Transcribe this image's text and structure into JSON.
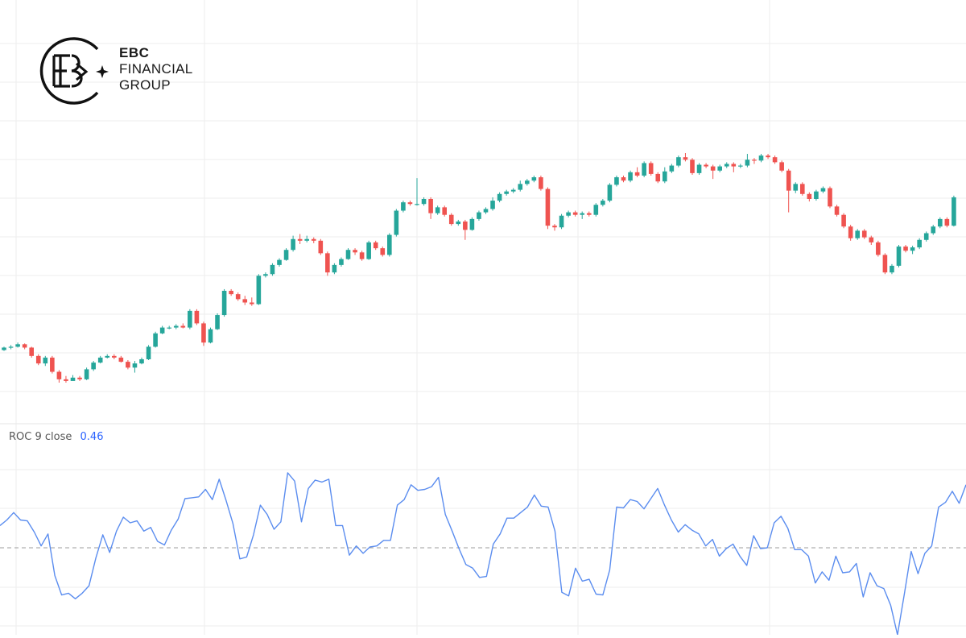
{
  "brand": {
    "name_line1": "EBC",
    "name_line2": "FINANCIAL",
    "name_line3": "GROUP"
  },
  "indicator": {
    "name": "ROC",
    "length": "9",
    "source": "close",
    "value": "0.46"
  },
  "colors": {
    "up": "#26a69a",
    "down": "#ef5350",
    "roc_line": "#5b8def",
    "zero_line": "#9e9e9e",
    "grid": "#eeeeee",
    "legend_value": "#2962ff"
  },
  "chart_data": [
    {
      "type": "candlestick",
      "title": "",
      "candles": [
        [
          -0.9,
          -0.6,
          -0.5,
          -1.0
        ],
        [
          -0.6,
          -0.5,
          -0.3,
          -0.8
        ],
        [
          -0.5,
          -0.2,
          0.0,
          -0.6
        ],
        [
          -0.2,
          -0.6,
          -0.1,
          -0.8
        ],
        [
          -0.6,
          -1.6,
          -0.5,
          -1.8
        ],
        [
          -1.6,
          -2.5,
          -1.4,
          -2.7
        ],
        [
          -2.5,
          -1.8,
          -1.6,
          -2.8
        ],
        [
          -1.8,
          -3.5,
          -1.6,
          -3.7
        ],
        [
          -3.5,
          -4.4,
          -3.3,
          -4.8
        ],
        [
          -4.4,
          -4.6,
          -4.0,
          -4.8
        ],
        [
          -4.6,
          -4.2,
          -3.9,
          -4.4
        ],
        [
          -4.2,
          -4.4,
          -4.0,
          -4.6
        ],
        [
          -4.4,
          -3.2,
          -3.0,
          -4.5
        ],
        [
          -3.2,
          -2.4,
          -2.2,
          -3.4
        ],
        [
          -2.4,
          -1.8,
          -1.6,
          -2.5
        ],
        [
          -1.8,
          -1.6,
          -1.4,
          -1.9
        ],
        [
          -1.6,
          -1.8,
          -1.4,
          -2.0
        ],
        [
          -1.8,
          -2.3,
          -1.6,
          -2.4
        ],
        [
          -2.3,
          -3.0,
          -2.1,
          -3.2
        ],
        [
          -3.0,
          -2.5,
          -2.2,
          -3.6
        ],
        [
          -2.5,
          -2.0,
          -1.8,
          -2.6
        ],
        [
          -2.0,
          -0.5,
          -0.3,
          -2.1
        ],
        [
          -0.5,
          1.1,
          1.3,
          -0.6
        ],
        [
          1.1,
          1.8,
          2.0,
          1.0
        ],
        [
          1.8,
          1.8,
          2.0,
          1.6
        ],
        [
          1.8,
          2.0,
          2.2,
          1.6
        ],
        [
          2.0,
          1.8,
          2.3,
          1.7
        ],
        [
          1.8,
          3.8,
          4.0,
          1.6
        ],
        [
          3.8,
          2.3,
          4.0,
          2.1
        ],
        [
          2.3,
          0.0,
          2.5,
          -0.4
        ],
        [
          0.0,
          1.6,
          1.8,
          -0.1
        ],
        [
          1.6,
          3.3,
          3.5,
          1.5
        ],
        [
          3.3,
          6.2,
          6.4,
          3.1
        ],
        [
          6.2,
          5.8,
          6.4,
          5.6
        ],
        [
          5.8,
          5.2,
          6.0,
          5.0
        ],
        [
          5.2,
          4.8,
          5.6,
          4.5
        ],
        [
          4.8,
          4.6,
          5.4,
          4.4
        ],
        [
          4.6,
          8.0,
          8.2,
          4.5
        ],
        [
          8.0,
          8.2,
          8.4,
          7.8
        ],
        [
          8.2,
          9.3,
          9.5,
          8.0
        ],
        [
          9.3,
          9.9,
          10.1,
          9.1
        ],
        [
          9.9,
          11.1,
          11.3,
          9.8
        ],
        [
          11.1,
          12.4,
          12.8,
          10.9
        ],
        [
          12.4,
          12.2,
          13.0,
          11.8
        ],
        [
          12.2,
          12.4,
          12.8,
          12.0
        ],
        [
          12.4,
          12.2,
          12.6,
          11.9
        ],
        [
          12.2,
          10.7,
          12.4,
          10.5
        ],
        [
          10.7,
          8.4,
          10.9,
          8.0
        ],
        [
          8.4,
          9.3,
          9.5,
          8.2
        ],
        [
          9.3,
          10.0,
          10.2,
          9.1
        ],
        [
          10.0,
          11.1,
          11.3,
          9.9
        ],
        [
          11.1,
          10.8,
          11.3,
          10.5
        ],
        [
          10.8,
          10.0,
          11.0,
          9.8
        ],
        [
          10.0,
          12.0,
          12.2,
          9.9
        ],
        [
          12.0,
          11.3,
          12.2,
          11.1
        ],
        [
          11.3,
          10.5,
          11.5,
          10.3
        ],
        [
          10.5,
          12.9,
          13.1,
          10.3
        ],
        [
          12.9,
          15.8,
          16.0,
          12.7
        ],
        [
          15.8,
          16.8,
          17.0,
          15.6
        ],
        [
          16.8,
          16.6,
          17.0,
          16.4
        ],
        [
          16.6,
          16.6,
          19.7,
          16.4
        ],
        [
          16.6,
          17.2,
          17.4,
          16.4
        ],
        [
          17.2,
          15.5,
          17.4,
          14.8
        ],
        [
          15.5,
          16.2,
          16.4,
          15.3
        ],
        [
          16.2,
          15.3,
          16.4,
          15.1
        ],
        [
          15.3,
          14.2,
          15.5,
          14.0
        ],
        [
          14.2,
          14.5,
          14.7,
          14.0
        ],
        [
          14.5,
          13.5,
          14.7,
          12.3
        ],
        [
          13.5,
          14.8,
          15.0,
          13.4
        ],
        [
          14.8,
          15.6,
          15.8,
          14.6
        ],
        [
          15.6,
          16.0,
          16.2,
          15.4
        ],
        [
          16.0,
          17.0,
          17.4,
          15.8
        ],
        [
          17.0,
          17.8,
          18.0,
          16.8
        ],
        [
          17.8,
          18.1,
          18.3,
          17.6
        ],
        [
          18.1,
          18.3,
          18.5,
          17.9
        ],
        [
          18.3,
          19.0,
          19.4,
          18.1
        ],
        [
          19.0,
          19.4,
          19.6,
          18.8
        ],
        [
          19.4,
          19.8,
          20.0,
          19.2
        ],
        [
          19.8,
          18.4,
          20.0,
          18.2
        ],
        [
          18.4,
          14.0,
          18.6,
          13.6
        ],
        [
          14.0,
          13.8,
          14.2,
          13.4
        ],
        [
          13.8,
          15.2,
          15.4,
          13.6
        ],
        [
          15.2,
          15.6,
          15.8,
          15.0
        ],
        [
          15.6,
          15.3,
          15.8,
          15.1
        ],
        [
          15.3,
          15.5,
          15.7,
          14.8
        ],
        [
          15.5,
          15.3,
          15.7,
          15.1
        ],
        [
          15.3,
          16.5,
          16.7,
          15.1
        ],
        [
          16.5,
          17.0,
          17.2,
          16.3
        ],
        [
          17.0,
          18.9,
          19.1,
          16.8
        ],
        [
          18.9,
          19.8,
          20.0,
          18.7
        ],
        [
          19.8,
          19.4,
          20.0,
          19.2
        ],
        [
          19.4,
          20.4,
          20.6,
          19.2
        ],
        [
          20.4,
          20.0,
          21.0,
          19.8
        ],
        [
          20.0,
          21.5,
          21.7,
          19.8
        ],
        [
          21.5,
          20.2,
          21.7,
          20.0
        ],
        [
          20.2,
          19.3,
          20.4,
          19.1
        ],
        [
          19.3,
          20.5,
          21.0,
          19.1
        ],
        [
          20.5,
          21.2,
          21.4,
          20.3
        ],
        [
          21.2,
          22.2,
          22.4,
          21.0
        ],
        [
          22.2,
          21.9,
          22.7,
          21.7
        ],
        [
          21.9,
          20.3,
          22.1,
          20.1
        ],
        [
          20.3,
          21.3,
          21.5,
          20.1
        ],
        [
          21.3,
          21.1,
          21.5,
          20.9
        ],
        [
          21.1,
          20.6,
          21.3,
          19.6
        ],
        [
          20.6,
          21.1,
          21.3,
          20.4
        ],
        [
          21.1,
          21.4,
          21.6,
          20.9
        ],
        [
          21.4,
          21.1,
          21.6,
          20.4
        ],
        [
          21.1,
          21.2,
          21.4,
          20.9
        ],
        [
          21.2,
          21.9,
          22.6,
          21.0
        ],
        [
          21.9,
          21.8,
          22.1,
          21.4
        ],
        [
          21.8,
          22.4,
          22.6,
          21.6
        ],
        [
          22.4,
          22.2,
          22.6,
          22.0
        ],
        [
          22.2,
          21.6,
          22.4,
          21.4
        ],
        [
          21.6,
          20.6,
          21.8,
          20.4
        ],
        [
          20.6,
          18.2,
          20.8,
          15.6
        ],
        [
          18.2,
          19.0,
          19.2,
          17.9
        ],
        [
          19.0,
          17.8,
          19.2,
          17.6
        ],
        [
          17.8,
          17.2,
          18.0,
          16.9
        ],
        [
          17.2,
          18.1,
          18.3,
          17.0
        ],
        [
          18.1,
          18.5,
          18.7,
          17.9
        ],
        [
          18.5,
          16.3,
          18.7,
          16.1
        ],
        [
          16.3,
          15.3,
          16.5,
          15.1
        ],
        [
          15.3,
          13.9,
          15.5,
          13.7
        ],
        [
          13.9,
          12.5,
          14.1,
          12.2
        ],
        [
          12.5,
          13.4,
          13.6,
          12.3
        ],
        [
          13.4,
          12.6,
          13.6,
          12.4
        ],
        [
          12.6,
          12.0,
          12.8,
          11.7
        ],
        [
          12.0,
          10.5,
          12.2,
          10.3
        ],
        [
          10.5,
          8.4,
          10.7,
          8.2
        ],
        [
          8.4,
          9.2,
          9.4,
          8.2
        ],
        [
          9.2,
          11.5,
          11.7,
          9.0
        ],
        [
          11.5,
          11.0,
          11.7,
          10.8
        ],
        [
          11.0,
          11.4,
          11.6,
          10.6
        ],
        [
          11.4,
          12.3,
          12.5,
          11.2
        ],
        [
          12.3,
          13.1,
          13.3,
          12.1
        ],
        [
          13.1,
          13.9,
          14.1,
          12.9
        ],
        [
          13.9,
          14.8,
          15.0,
          13.7
        ],
        [
          14.8,
          14.0,
          15.0,
          13.8
        ],
        [
          14.0,
          17.4,
          17.6,
          13.9
        ]
      ]
    },
    {
      "type": "line",
      "title": "",
      "series": [
        {
          "values": [
            1.2,
            1.5,
            1.9,
            1.5,
            1.45,
            0.85,
            0.1,
            0.75,
            -1.5,
            -2.55,
            -2.45,
            -2.75,
            -2.45,
            -2.05,
            -0.55,
            0.7,
            -0.25,
            0.9,
            1.65,
            1.35,
            1.45,
            0.9,
            1.1,
            0.35,
            0.15,
            0.95,
            1.55,
            2.65,
            2.7,
            2.75,
            3.15,
            2.6,
            3.7,
            2.55,
            1.3,
            -0.6,
            -0.5,
            0.7,
            2.3,
            1.8,
            1.0,
            1.4,
            4.05,
            3.6,
            1.4,
            3.2,
            3.65,
            3.55,
            3.7,
            1.2,
            1.2,
            -0.4,
            0.1,
            -0.3,
            0.05,
            0.1,
            0.4,
            0.4,
            2.3,
            2.6,
            3.4,
            3.1,
            3.15,
            3.3,
            3.8,
            1.8,
            0.9,
            -0.05,
            -0.9,
            -1.1,
            -1.6,
            -1.55,
            0.2,
            0.75,
            1.6,
            1.6,
            1.9,
            2.2,
            2.85,
            2.25,
            2.2,
            0.9,
            -2.4,
            -2.6,
            -1.1,
            -1.8,
            -1.7,
            -2.5,
            -2.55,
            -1.2,
            2.2,
            2.15,
            2.6,
            2.5,
            2.1,
            2.65,
            3.2,
            2.3,
            1.5,
            0.85,
            1.25,
            0.95,
            0.75,
            0.1,
            0.45,
            -0.45,
            -0.05,
            0.2,
            -0.45,
            -0.95,
            0.65,
            -0.05,
            0.0,
            1.35,
            1.7,
            1.05,
            -0.1,
            -0.1,
            -0.45,
            -1.9,
            -1.3,
            -1.75,
            -0.45,
            -1.35,
            -1.3,
            -0.85,
            -2.65,
            -1.35,
            -2.05,
            -2.2,
            -3.1,
            -4.7,
            -2.5,
            -0.2,
            -1.4,
            -0.3,
            0.1,
            2.2,
            2.45,
            3.05,
            2.4,
            3.4
          ]
        }
      ],
      "zero_line": 0
    }
  ]
}
